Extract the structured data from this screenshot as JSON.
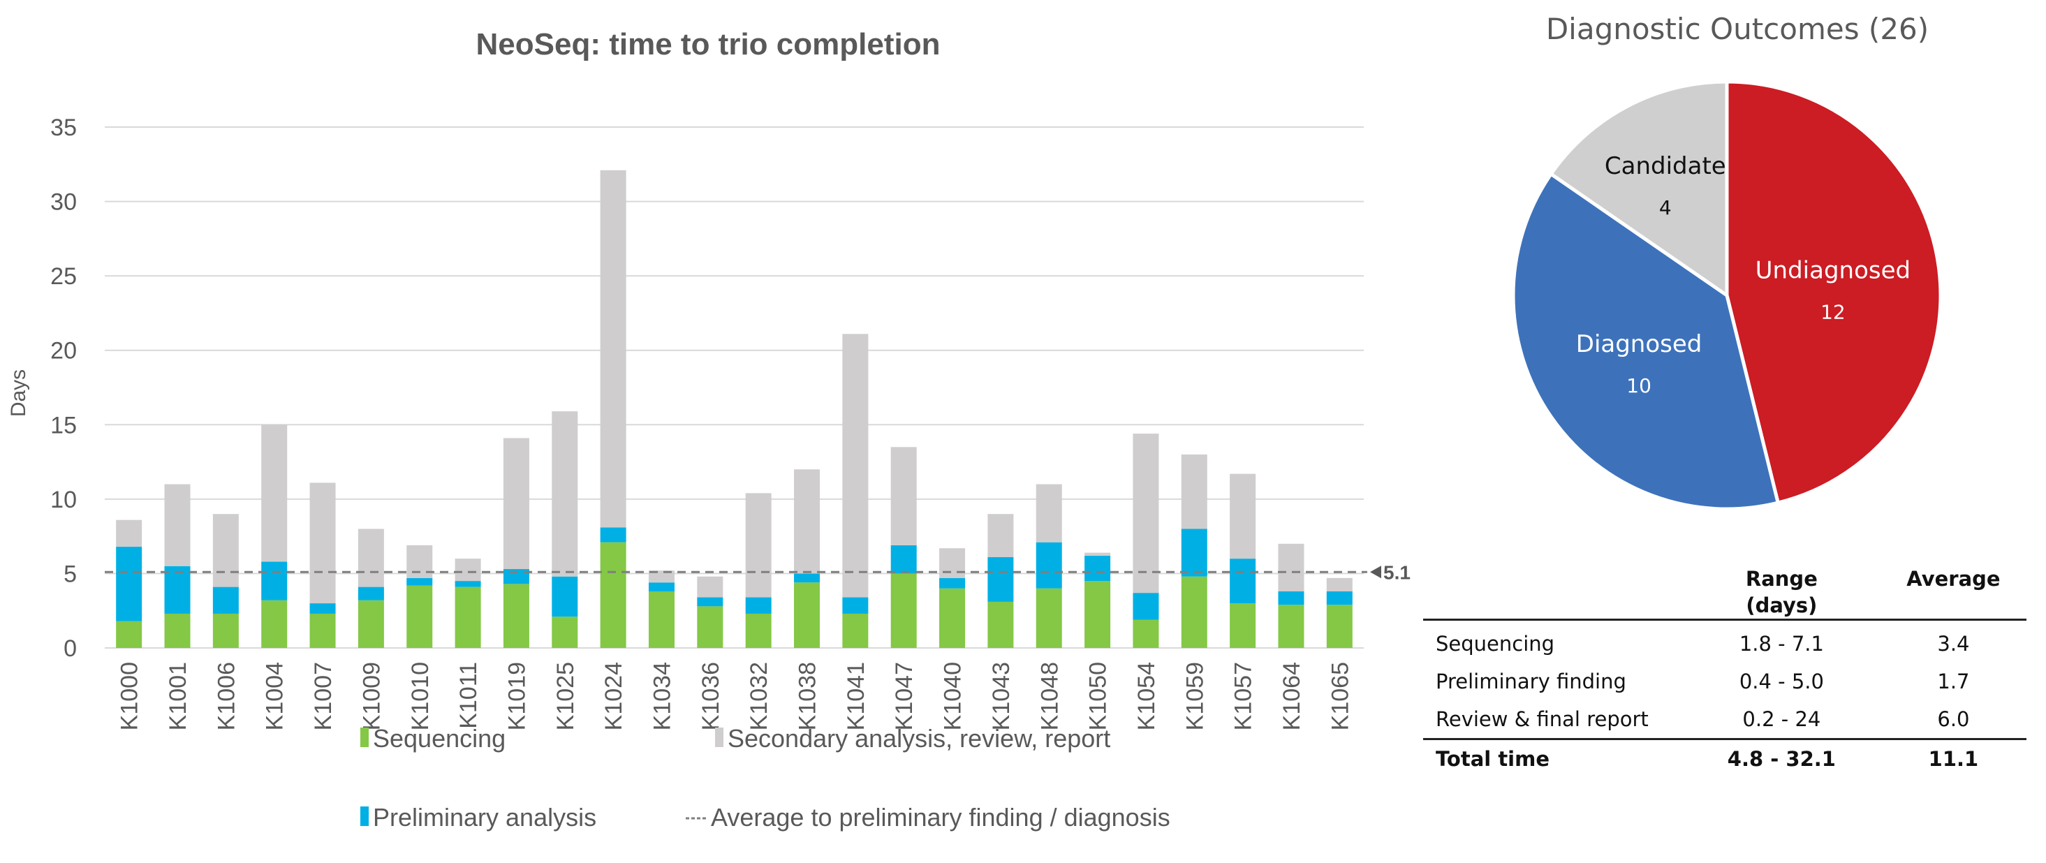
{
  "chart_data": [
    {
      "type": "bar",
      "stacked": true,
      "title": "NeoSeq: time to trio completion",
      "xlabel": "",
      "ylabel": "Days",
      "ylim": [
        0,
        35
      ],
      "yticks": [
        0,
        5,
        10,
        15,
        20,
        25,
        30,
        35
      ],
      "grid": true,
      "legend_position": "bottom",
      "categories": [
        "K1000",
        "K1001",
        "K1006",
        "K1004",
        "K1007",
        "K1009",
        "K1010",
        "K1011",
        "K1019",
        "K1025",
        "K1024",
        "K1034",
        "K1036",
        "K1032",
        "K1038",
        "K1041",
        "K1047",
        "K1040",
        "K1043",
        "K1048",
        "K1050",
        "K1054",
        "K1059",
        "K1057",
        "K1064",
        "K1065"
      ],
      "series": [
        {
          "name": "Sequencing",
          "color": "#84c846",
          "values": [
            1.8,
            2.3,
            2.3,
            3.2,
            2.3,
            3.2,
            4.2,
            4.1,
            4.3,
            2.1,
            7.1,
            3.8,
            2.8,
            2.3,
            4.4,
            2.3,
            5.0,
            4.0,
            3.1,
            4.0,
            4.5,
            1.9,
            4.8,
            3.0,
            2.9,
            2.9
          ]
        },
        {
          "name": "Preliminary analysis",
          "color": "#00b0e4",
          "values": [
            5.0,
            3.2,
            1.8,
            2.6,
            0.7,
            0.9,
            0.5,
            0.4,
            1.0,
            2.7,
            1.0,
            0.6,
            0.6,
            1.1,
            0.6,
            1.1,
            1.9,
            0.7,
            3.0,
            3.1,
            1.7,
            1.8,
            3.2,
            3.0,
            0.9,
            0.9
          ]
        },
        {
          "name": "Secondary analysis, review, report",
          "color": "#cfcdcd",
          "values": [
            1.8,
            5.5,
            4.9,
            9.2,
            8.1,
            3.9,
            2.2,
            1.5,
            8.8,
            11.1,
            24.0,
            0.8,
            1.4,
            7.0,
            7.0,
            17.7,
            6.6,
            2.0,
            2.9,
            3.9,
            0.2,
            10.7,
            5.0,
            5.7,
            3.2,
            0.9
          ]
        }
      ],
      "reference_line": {
        "name": "Average to preliminary finding / diagnosis",
        "value": 5.1,
        "label": "5.1",
        "color": "#7f7f7f",
        "style": "dashed"
      }
    },
    {
      "type": "pie",
      "title": "Diagnostic Outcomes (26)",
      "slices": [
        {
          "label": "Undiagnosed",
          "value": 12,
          "color": "#cc1c24",
          "text_color": "#ffffff"
        },
        {
          "label": "Diagnosed",
          "value": 10,
          "color": "#3d72bb",
          "text_color": "#ffffff"
        },
        {
          "label": "Candidate",
          "value": 4,
          "color": "#d0cfcf",
          "text_color": "#111111"
        }
      ]
    }
  ],
  "table": {
    "headers": [
      "",
      "Range (days)",
      "Average"
    ],
    "rows": [
      {
        "label": "Sequencing",
        "range": "1.8 - 7.1",
        "average": "3.4"
      },
      {
        "label": "Preliminary finding",
        "range": "0.4 - 5.0",
        "average": "1.7"
      },
      {
        "label": "Review & final report",
        "range": "0.2 - 24",
        "average": "6.0"
      }
    ],
    "total": {
      "label": "Total time",
      "range": "4.8 - 32.1",
      "average": "11.1"
    }
  }
}
